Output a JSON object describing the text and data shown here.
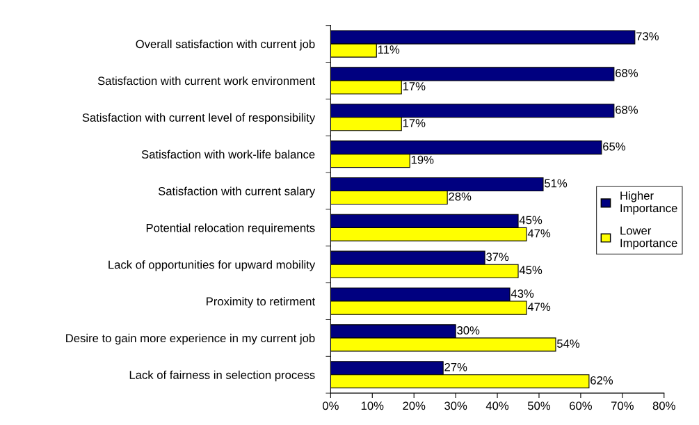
{
  "chart_data": {
    "type": "bar",
    "orientation": "horizontal",
    "categories": [
      "Overall satisfaction with current job",
      "Satisfaction with current work environment",
      "Satisfaction with current level of responsibility",
      "Satisfaction with work-life balance",
      "Satisfaction with current salary",
      "Potential relocation requirements",
      "Lack of opportunities for upward mobility",
      "Proximity to retirment",
      "Desire to gain more experience in my current job",
      "Lack of fairness in selection process"
    ],
    "series": [
      {
        "name": "Higher Importance",
        "color": "#000080",
        "values": [
          73,
          68,
          68,
          65,
          51,
          45,
          37,
          43,
          30,
          27
        ],
        "value_labels": [
          "73%",
          "68%",
          "68%",
          "65%",
          "51%",
          "45%",
          "37%",
          "43%",
          "30%",
          "27%"
        ]
      },
      {
        "name": "Lower Importance",
        "color": "#ffff00",
        "values": [
          11,
          17,
          17,
          19,
          28,
          47,
          45,
          47,
          54,
          62
        ],
        "value_labels": [
          "11%",
          "17%",
          "17%",
          "19%",
          "28%",
          "47%",
          "45%",
          "47%",
          "54%",
          "62%"
        ]
      }
    ],
    "xlim": [
      0,
      80
    ],
    "xticks": [
      {
        "value": 0,
        "label": "0%"
      },
      {
        "value": 10,
        "label": "10%"
      },
      {
        "value": 20,
        "label": "20%"
      },
      {
        "value": 30,
        "label": "30%"
      },
      {
        "value": 40,
        "label": "40%"
      },
      {
        "value": 50,
        "label": "50%"
      },
      {
        "value": 60,
        "label": "60%"
      },
      {
        "value": 70,
        "label": "70%"
      },
      {
        "value": 80,
        "label": "80%"
      }
    ],
    "grid": false,
    "legend": "right"
  }
}
